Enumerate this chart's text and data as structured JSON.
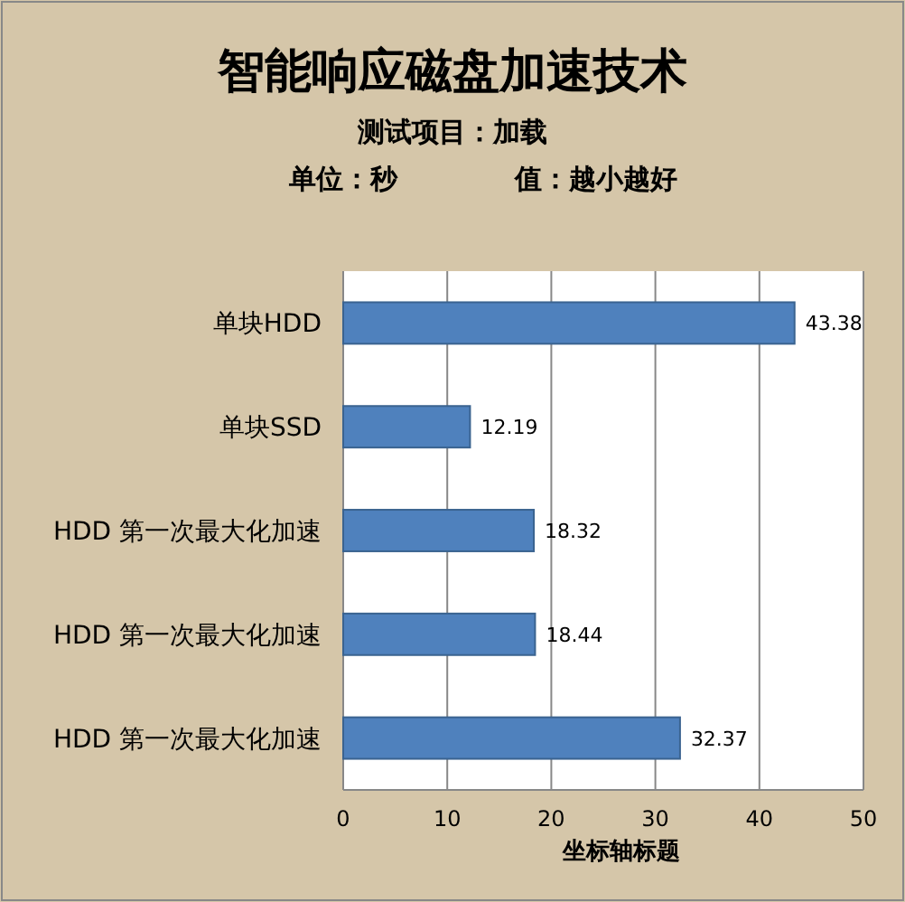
{
  "chart_data": {
    "type": "bar",
    "orientation": "horizontal",
    "title": "智能响应磁盘加速技术",
    "subtitle": "测试项目：加载",
    "annotations": [
      "单位：秒",
      "值：越小越好"
    ],
    "categories": [
      "单块HDD",
      "单块SSD",
      "HDD 第一次最大化加速",
      "HDD 第一次最大化加速",
      "HDD 第一次最大化加速"
    ],
    "values": [
      43.38,
      12.19,
      18.32,
      18.44,
      32.37
    ],
    "color": "#4f81bd",
    "xlim": [
      0,
      50
    ],
    "xticks": [
      0,
      10,
      20,
      30,
      40,
      50
    ],
    "xlabel": "坐标轴标题",
    "grid": "x",
    "data_labels": true
  }
}
